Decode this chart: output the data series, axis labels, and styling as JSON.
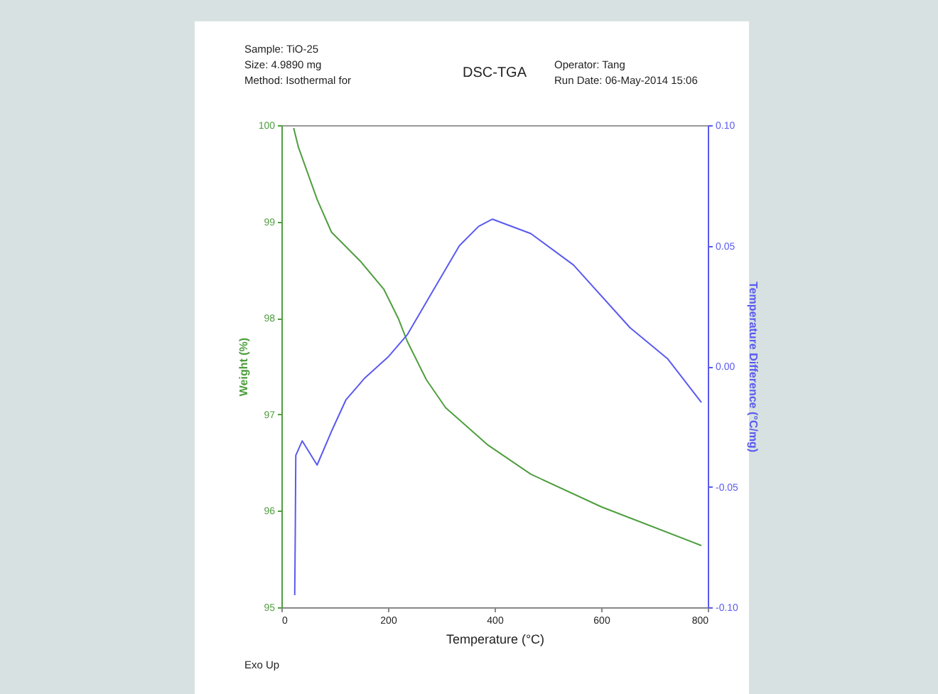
{
  "chart_data": {
    "type": "line",
    "title": "DSC-TGA",
    "xlabel": "Temperature (°C)",
    "ylabel": "Weight (%)",
    "y2label": "Temperature Difference (°C/mg)",
    "annotations": [
      "Sample: TiO-25",
      "Size: 4.9890 mg",
      "Method: Isothermal for",
      "Operator: Tang",
      "Run Date: 06-May-2014 15:06",
      "Exo Up"
    ],
    "xlim": [
      0,
      800
    ],
    "xticks": [
      0,
      200,
      400,
      600,
      800
    ],
    "ylim": [
      95,
      100
    ],
    "yticks": [
      95,
      96,
      97,
      98,
      99,
      100
    ],
    "y2lim": [
      -0.1,
      0.1
    ],
    "y2ticks": [
      {
        "value": -0.1,
        "label": "-0.10"
      },
      {
        "value": -0.05,
        "label": "-0.05"
      },
      {
        "value": 0,
        "label": "0.00"
      },
      {
        "value": 0.05,
        "label": "0.05"
      },
      {
        "value": 0.1,
        "label": "0.10"
      }
    ],
    "grid": false,
    "series": [
      {
        "color": "#4f9e3f",
        "x": [
          23,
          32,
          67,
          94,
          148,
          192,
          219,
          236,
          272,
          308,
          388,
          468,
          601,
          788
        ],
        "values": [
          99.97,
          99.77,
          99.23,
          98.89,
          98.59,
          98.3,
          98.0,
          97.76,
          97.36,
          97.07,
          96.68,
          96.38,
          96.04,
          95.64
        ]
      },
      {
        "color": "#5a5af0",
        "axis": "y2",
        "x": [
          25,
          26,
          27,
          39,
          67,
          94,
          121,
          156,
          201,
          236,
          281,
          334,
          370,
          396,
          468,
          548,
          654,
          725,
          788
        ],
        "values": [
          -0.095,
          -0.07,
          -0.037,
          -0.031,
          -0.041,
          -0.027,
          -0.014,
          -0.005,
          0.004,
          0.013,
          0.03,
          0.05,
          0.058,
          0.061,
          0.055,
          0.042,
          0.016,
          0.003,
          -0.015
        ]
      }
    ]
  }
}
